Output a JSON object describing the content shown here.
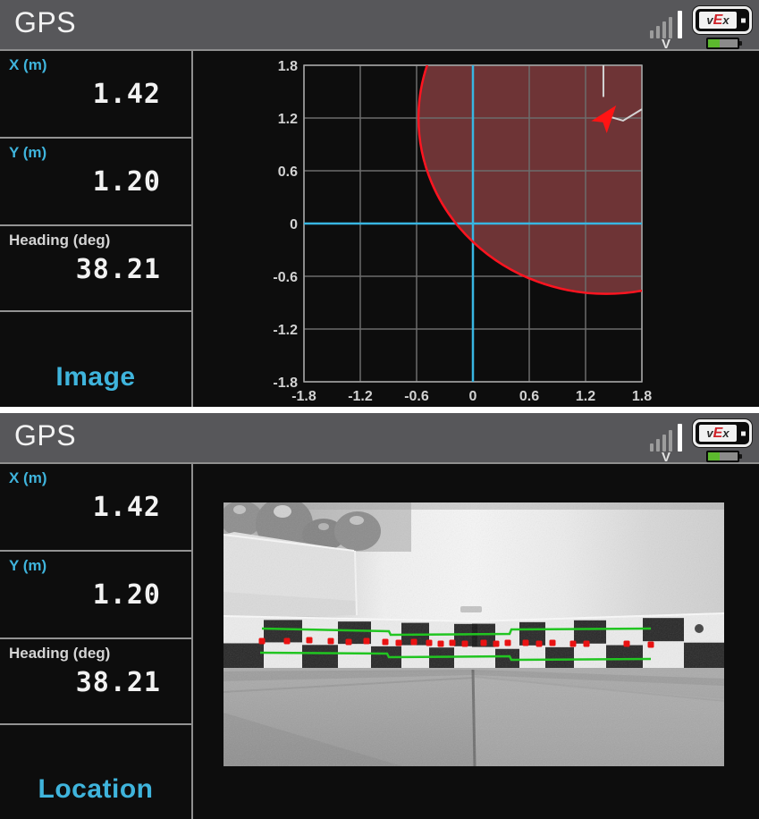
{
  "colors": {
    "accent_cyan": "#3fb4dc",
    "header_bg": "#57575a",
    "content_bg": "#0d0d0d",
    "panel_border": "#939393",
    "value_white": "#f2f2f2",
    "plain_label": "#d4d4d4",
    "grid_gray": "#6c6c6c",
    "plot_frame": "#a5a5a5",
    "axis_cyan": "#38b6e2",
    "range_fill": "#6e3436",
    "range_stroke": "#ff1420",
    "trail_gray": "#d4d4d4",
    "robot_red": "#ff1414",
    "overlay_green": "#21c521",
    "overlay_red": "#e91212",
    "battery_green": "#5cb82e"
  },
  "status": {
    "signal_letter": "V",
    "logo_v": "v",
    "logo_e": "E",
    "logo_x": "x"
  },
  "screens": [
    {
      "title": "GPS",
      "view": "location-plot",
      "sidebar": {
        "fields": [
          {
            "label": "X (m)",
            "value": "1.42",
            "label_style": "cyan"
          },
          {
            "label": "Y (m)",
            "value": "1.20",
            "label_style": "cyan"
          },
          {
            "label": "Heading (deg)",
            "value": "38.21",
            "label_style": "plain"
          }
        ],
        "button": "Image"
      }
    },
    {
      "title": "GPS",
      "view": "camera-image",
      "sidebar": {
        "fields": [
          {
            "label": "X (m)",
            "value": "1.42",
            "label_style": "cyan"
          },
          {
            "label": "Y (m)",
            "value": "1.20",
            "label_style": "cyan"
          },
          {
            "label": "Heading (deg)",
            "value": "38.21",
            "label_style": "plain"
          }
        ],
        "button": "Location"
      }
    }
  ],
  "plot": {
    "type": "scatter",
    "x_range": [
      -1.8,
      1.8
    ],
    "y_range": [
      -1.8,
      1.8
    ],
    "x_ticks": [
      -1.8,
      -1.2,
      -0.6,
      0,
      0.6,
      1.2,
      1.8
    ],
    "y_ticks": [
      1.8,
      1.2,
      0.6,
      0,
      -0.6,
      -1.2,
      -1.8
    ],
    "x_tick_labels": [
      "-1.8",
      "-1.2",
      "-0.6",
      "0",
      "0.6",
      "1.2",
      "1.8"
    ],
    "y_tick_labels": [
      "1.8",
      "1.2",
      "0.6",
      "0",
      "-0.6",
      "-1.2",
      "-1.8"
    ],
    "robot": {
      "x_m": 1.42,
      "y_m": 1.2,
      "heading_deg": 38.21
    },
    "range_circle": {
      "x_m": 1.42,
      "y_m": 1.2,
      "radius_m": 2.0
    },
    "trail": [
      [
        [
          1.39,
          1.8
        ],
        [
          1.39,
          1.44
        ]
      ],
      [
        [
          1.44,
          1.22
        ],
        [
          1.6,
          1.17
        ],
        [
          1.8,
          1.3
        ]
      ]
    ]
  },
  "camera": {
    "green_lines": [
      [
        [
          43,
          141
        ],
        [
          185,
          144
        ],
        [
          187,
          148
        ],
        [
          320,
          147
        ],
        [
          322,
          142
        ],
        [
          478,
          141
        ]
      ],
      [
        [
          41,
          168
        ],
        [
          183,
          169
        ],
        [
          185,
          173
        ],
        [
          320,
          172
        ],
        [
          322,
          176
        ],
        [
          478,
          175
        ]
      ]
    ],
    "red_dots": [
      [
        43,
        155
      ],
      [
        71,
        155
      ],
      [
        96,
        154
      ],
      [
        120,
        155
      ],
      [
        140,
        156
      ],
      [
        160,
        155
      ],
      [
        181,
        156
      ],
      [
        196,
        157
      ],
      [
        213,
        156
      ],
      [
        230,
        157
      ],
      [
        243,
        158
      ],
      [
        256,
        157
      ],
      [
        270,
        158
      ],
      [
        291,
        157
      ],
      [
        305,
        158
      ],
      [
        318,
        157
      ],
      [
        338,
        157
      ],
      [
        353,
        158
      ],
      [
        368,
        157
      ],
      [
        391,
        158
      ],
      [
        406,
        158
      ],
      [
        451,
        158
      ],
      [
        478,
        159
      ]
    ]
  }
}
